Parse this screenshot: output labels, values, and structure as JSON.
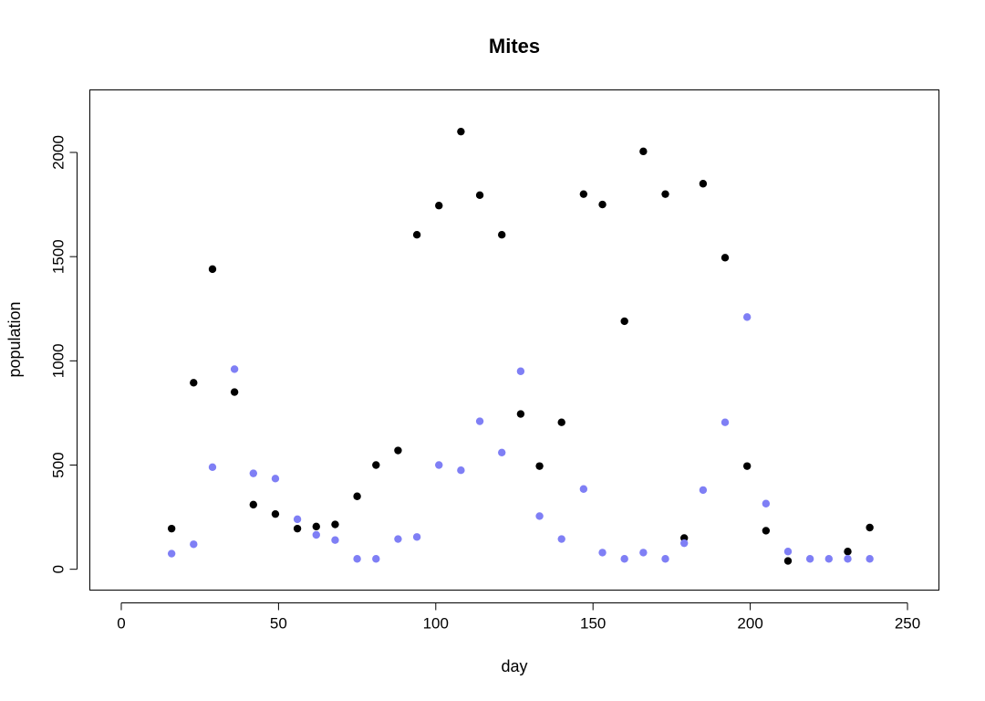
{
  "chart_data": {
    "type": "scatter",
    "title": "Mites",
    "xlabel": "day",
    "ylabel": "population",
    "xlim": [
      -10,
      260
    ],
    "ylim": [
      -100,
      2300
    ],
    "xticks": [
      0,
      50,
      100,
      150,
      200,
      250
    ],
    "yticks": [
      0,
      500,
      1000,
      1500,
      2000
    ],
    "grid": false,
    "series": [
      {
        "color": "#000000",
        "points": [
          [
            16,
            195
          ],
          [
            23,
            895
          ],
          [
            29,
            1440
          ],
          [
            36,
            850
          ],
          [
            42,
            310
          ],
          [
            49,
            265
          ],
          [
            56,
            195
          ],
          [
            62,
            205
          ],
          [
            68,
            215
          ],
          [
            75,
            350
          ],
          [
            81,
            500
          ],
          [
            88,
            570
          ],
          [
            94,
            1605
          ],
          [
            101,
            1745
          ],
          [
            108,
            2100
          ],
          [
            114,
            1795
          ],
          [
            121,
            1605
          ],
          [
            127,
            745
          ],
          [
            133,
            495
          ],
          [
            140,
            705
          ],
          [
            147,
            1800
          ],
          [
            153,
            1750
          ],
          [
            160,
            1190
          ],
          [
            166,
            2005
          ],
          [
            173,
            1800
          ],
          [
            179,
            150
          ],
          [
            185,
            1850
          ],
          [
            192,
            1495
          ],
          [
            199,
            495
          ],
          [
            205,
            185
          ],
          [
            212,
            40
          ],
          [
            231,
            85
          ],
          [
            238,
            200
          ]
        ]
      },
      {
        "color": "#7f7ff5",
        "points": [
          [
            16,
            75
          ],
          [
            23,
            120
          ],
          [
            29,
            490
          ],
          [
            36,
            960
          ],
          [
            42,
            460
          ],
          [
            49,
            435
          ],
          [
            56,
            240
          ],
          [
            62,
            165
          ],
          [
            68,
            140
          ],
          [
            75,
            50
          ],
          [
            81,
            50
          ],
          [
            88,
            145
          ],
          [
            94,
            155
          ],
          [
            101,
            500
          ],
          [
            108,
            475
          ],
          [
            114,
            710
          ],
          [
            121,
            560
          ],
          [
            127,
            950
          ],
          [
            133,
            255
          ],
          [
            140,
            145
          ],
          [
            147,
            385
          ],
          [
            153,
            80
          ],
          [
            160,
            50
          ],
          [
            166,
            80
          ],
          [
            173,
            50
          ],
          [
            179,
            125
          ],
          [
            185,
            380
          ],
          [
            192,
            705
          ],
          [
            199,
            1210
          ],
          [
            205,
            315
          ],
          [
            212,
            85
          ],
          [
            219,
            50
          ],
          [
            225,
            50
          ],
          [
            231,
            50
          ],
          [
            238,
            50
          ]
        ]
      }
    ]
  }
}
